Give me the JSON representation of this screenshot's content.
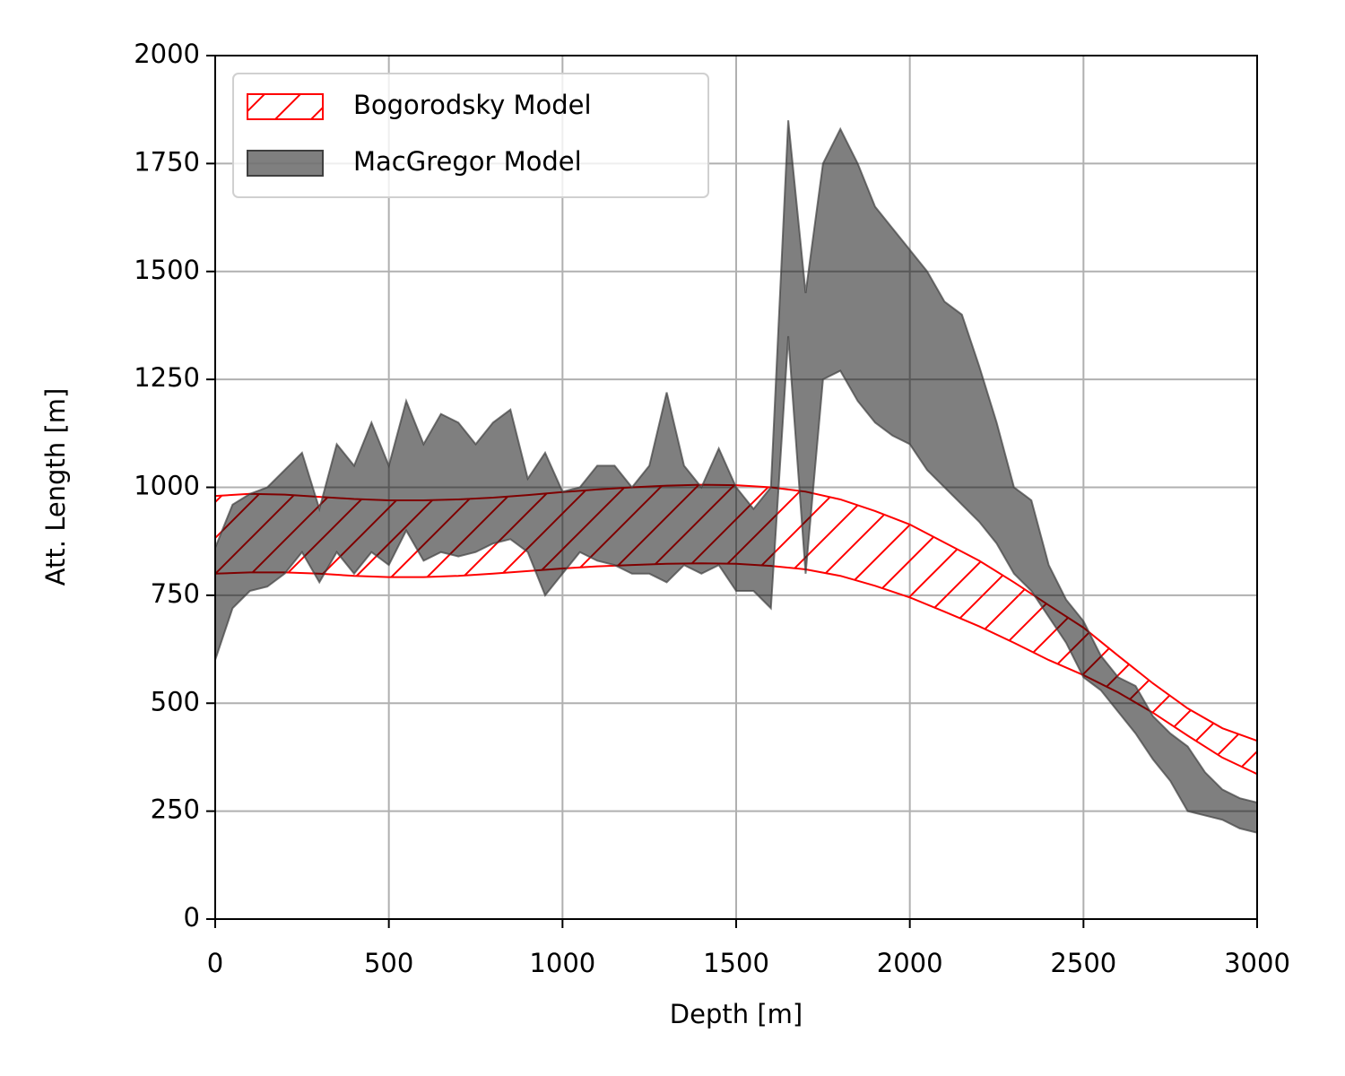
{
  "chart_data": {
    "type": "band",
    "xlabel": "Depth [m]",
    "ylabel": "Att. Length [m]",
    "xlim": [
      0,
      3000
    ],
    "xticks": [
      0,
      500,
      1000,
      1500,
      2000,
      2500,
      3000
    ],
    "ylim": [
      0,
      2000
    ],
    "yticks": [
      0,
      250,
      500,
      750,
      1000,
      1250,
      1500,
      1750,
      2000
    ],
    "grid": true,
    "legend": "upper left",
    "series": [
      {
        "name": "Bogorodsky Model",
        "color": "#ff0000",
        "hatch": "/",
        "x": [
          0,
          100,
          200,
          300,
          400,
          500,
          600,
          700,
          800,
          900,
          1000,
          1100,
          1200,
          1300,
          1400,
          1500,
          1600,
          1700,
          1800,
          1900,
          2000,
          2100,
          2200,
          2300,
          2400,
          2500,
          2600,
          2700,
          2800,
          2900,
          3000
        ],
        "upper": [
          980,
          985,
          983,
          978,
          973,
          970,
          970,
          972,
          976,
          982,
          989,
          995,
          1000,
          1004,
          1006,
          1005,
          1000,
          990,
          972,
          945,
          914,
          872,
          830,
          780,
          727,
          675,
          610,
          546,
          488,
          442,
          413
        ],
        "lower": [
          800,
          803,
          803,
          800,
          795,
          792,
          792,
          795,
          800,
          806,
          812,
          817,
          820,
          823,
          824,
          823,
          818,
          810,
          795,
          772,
          745,
          712,
          678,
          640,
          600,
          565,
          525,
          478,
          425,
          374,
          336
        ]
      },
      {
        "name": "MacGregor Model",
        "color": "#808080",
        "edgecolor": "#404040",
        "x": [
          0,
          50,
          100,
          150,
          200,
          250,
          300,
          350,
          400,
          450,
          500,
          550,
          600,
          650,
          700,
          750,
          800,
          850,
          900,
          950,
          1000,
          1050,
          1100,
          1150,
          1200,
          1250,
          1300,
          1350,
          1400,
          1450,
          1500,
          1550,
          1600,
          1650,
          1700,
          1750,
          1800,
          1850,
          1900,
          1950,
          2000,
          2050,
          2100,
          2150,
          2200,
          2250,
          2300,
          2350,
          2400,
          2450,
          2500,
          2550,
          2600,
          2650,
          2700,
          2750,
          2800,
          2850,
          2900,
          2950,
          3000
        ],
        "upper": [
          860,
          960,
          985,
          1000,
          1040,
          1080,
          950,
          1100,
          1050,
          1150,
          1050,
          1200,
          1100,
          1170,
          1150,
          1100,
          1150,
          1180,
          1020,
          1080,
          990,
          1000,
          1050,
          1050,
          1000,
          1050,
          1220,
          1050,
          1000,
          1090,
          1000,
          950,
          1000,
          1850,
          1450,
          1750,
          1830,
          1750,
          1650,
          1600,
          1550,
          1500,
          1430,
          1400,
          1280,
          1150,
          1000,
          970,
          820,
          740,
          690,
          610,
          560,
          540,
          470,
          430,
          400,
          340,
          300,
          280,
          270
        ],
        "lower": [
          600,
          720,
          760,
          770,
          800,
          850,
          780,
          850,
          800,
          850,
          820,
          900,
          830,
          850,
          840,
          850,
          870,
          880,
          850,
          750,
          800,
          850,
          830,
          820,
          800,
          800,
          780,
          820,
          800,
          820,
          760,
          760,
          720,
          1350,
          800,
          1250,
          1270,
          1200,
          1150,
          1120,
          1100,
          1040,
          1000,
          960,
          920,
          870,
          800,
          760,
          700,
          640,
          560,
          530,
          480,
          430,
          370,
          320,
          250,
          240,
          230,
          210,
          200
        ]
      }
    ]
  }
}
